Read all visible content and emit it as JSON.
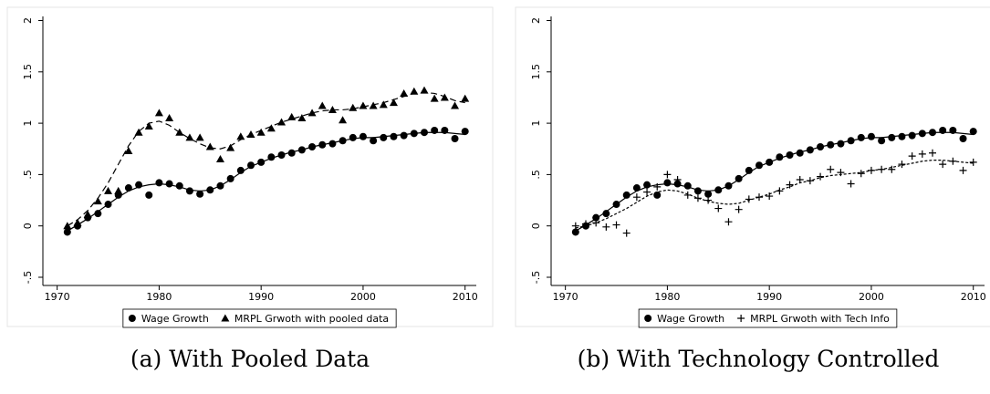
{
  "chart_data": [
    {
      "type": "scatter",
      "caption": "(a) With Pooled Data",
      "x": [
        1971,
        1972,
        1973,
        1974,
        1975,
        1976,
        1977,
        1978,
        1979,
        1980,
        1981,
        1982,
        1983,
        1984,
        1985,
        1986,
        1987,
        1988,
        1989,
        1990,
        1991,
        1992,
        1993,
        1994,
        1995,
        1996,
        1997,
        1998,
        1999,
        2000,
        2001,
        2002,
        2003,
        2004,
        2005,
        2006,
        2007,
        2008,
        2009,
        2010
      ],
      "series": [
        {
          "name": "Wage Growth",
          "color": "#000000",
          "marker": "circle",
          "dash": "none",
          "values": [
            -0.06,
            0.0,
            0.08,
            0.12,
            0.21,
            0.3,
            0.37,
            0.4,
            0.3,
            0.42,
            0.41,
            0.39,
            0.34,
            0.31,
            0.35,
            0.39,
            0.46,
            0.54,
            0.59,
            0.62,
            0.67,
            0.69,
            0.71,
            0.74,
            0.77,
            0.79,
            0.8,
            0.83,
            0.86,
            0.87,
            0.83,
            0.86,
            0.87,
            0.88,
            0.9,
            0.91,
            0.93,
            0.93,
            0.85,
            0.92
          ],
          "fit": [
            -0.05,
            0.01,
            0.07,
            0.14,
            0.21,
            0.28,
            0.34,
            0.38,
            0.4,
            0.41,
            0.4,
            0.38,
            0.35,
            0.34,
            0.35,
            0.39,
            0.45,
            0.52,
            0.58,
            0.62,
            0.66,
            0.69,
            0.72,
            0.74,
            0.77,
            0.79,
            0.81,
            0.83,
            0.85,
            0.86,
            0.86,
            0.87,
            0.88,
            0.89,
            0.9,
            0.91,
            0.91,
            0.91,
            0.9,
            0.89
          ]
        },
        {
          "name": "MRPL Grwoth with pooled data",
          "color": "#000000",
          "marker": "triangle",
          "dash": "7 4",
          "values": [
            0.0,
            0.03,
            0.11,
            0.24,
            0.34,
            0.34,
            0.73,
            0.91,
            0.97,
            1.1,
            1.05,
            0.91,
            0.86,
            0.86,
            0.77,
            0.65,
            0.76,
            0.87,
            0.89,
            0.91,
            0.95,
            1.01,
            1.06,
            1.05,
            1.1,
            1.17,
            1.13,
            1.03,
            1.15,
            1.17,
            1.17,
            1.18,
            1.2,
            1.29,
            1.31,
            1.32,
            1.24,
            1.25,
            1.17,
            1.24
          ],
          "fit": [
            0.0,
            0.06,
            0.15,
            0.27,
            0.42,
            0.6,
            0.78,
            0.92,
            1.0,
            1.02,
            0.98,
            0.91,
            0.85,
            0.8,
            0.76,
            0.75,
            0.78,
            0.84,
            0.89,
            0.93,
            0.97,
            1.01,
            1.04,
            1.07,
            1.1,
            1.12,
            1.13,
            1.13,
            1.14,
            1.16,
            1.18,
            1.2,
            1.23,
            1.26,
            1.29,
            1.3,
            1.29,
            1.26,
            1.22,
            1.2
          ]
        }
      ],
      "xlim": [
        1968.6,
        2011.1
      ],
      "xticks": [
        1970,
        1980,
        1990,
        2000,
        2010
      ],
      "ylim": [
        -0.58,
        2.04
      ],
      "yticks": [
        {
          "value": -0.5,
          "label": "-.5"
        },
        0,
        {
          "value": 0.5,
          "label": ".5"
        },
        1,
        1.5,
        2
      ],
      "legend": "bottom"
    },
    {
      "type": "scatter",
      "caption": "(b) With Technology Controlled",
      "x": [
        1971,
        1972,
        1973,
        1974,
        1975,
        1976,
        1977,
        1978,
        1979,
        1980,
        1981,
        1982,
        1983,
        1984,
        1985,
        1986,
        1987,
        1988,
        1989,
        1990,
        1991,
        1992,
        1993,
        1994,
        1995,
        1996,
        1997,
        1998,
        1999,
        2000,
        2001,
        2002,
        2003,
        2004,
        2005,
        2006,
        2007,
        2008,
        2009,
        2010
      ],
      "series": [
        {
          "name": "Wage Growth",
          "color": "#000000",
          "marker": "circle",
          "dash": "none",
          "values": [
            -0.06,
            0.0,
            0.08,
            0.12,
            0.21,
            0.3,
            0.37,
            0.4,
            0.3,
            0.42,
            0.41,
            0.39,
            0.34,
            0.31,
            0.35,
            0.39,
            0.46,
            0.54,
            0.59,
            0.62,
            0.67,
            0.69,
            0.71,
            0.74,
            0.77,
            0.79,
            0.8,
            0.83,
            0.86,
            0.87,
            0.83,
            0.86,
            0.87,
            0.88,
            0.9,
            0.91,
            0.93,
            0.93,
            0.85,
            0.92
          ],
          "fit": [
            -0.05,
            0.01,
            0.07,
            0.14,
            0.21,
            0.28,
            0.34,
            0.38,
            0.4,
            0.41,
            0.4,
            0.38,
            0.35,
            0.34,
            0.35,
            0.39,
            0.45,
            0.52,
            0.58,
            0.62,
            0.66,
            0.69,
            0.72,
            0.74,
            0.77,
            0.79,
            0.81,
            0.83,
            0.85,
            0.86,
            0.86,
            0.87,
            0.88,
            0.89,
            0.9,
            0.91,
            0.91,
            0.91,
            0.9,
            0.89
          ]
        },
        {
          "name": "MRPL Grwoth with Tech Info",
          "color": "#000000",
          "marker": "plus",
          "dash": "3 2",
          "values": [
            0.0,
            0.02,
            0.03,
            -0.01,
            0.01,
            -0.07,
            0.28,
            0.33,
            0.38,
            0.5,
            0.45,
            0.3,
            0.27,
            0.25,
            0.17,
            0.04,
            0.16,
            0.26,
            0.28,
            0.29,
            0.34,
            0.4,
            0.45,
            0.44,
            0.48,
            0.55,
            0.52,
            0.41,
            0.51,
            0.54,
            0.55,
            0.55,
            0.6,
            0.68,
            0.7,
            0.71,
            0.6,
            0.63,
            0.54,
            0.62
          ],
          "fit": [
            -0.02,
            0.0,
            0.03,
            0.07,
            0.12,
            0.17,
            0.23,
            0.29,
            0.33,
            0.35,
            0.34,
            0.31,
            0.27,
            0.24,
            0.22,
            0.21,
            0.22,
            0.25,
            0.28,
            0.31,
            0.35,
            0.38,
            0.42,
            0.44,
            0.47,
            0.49,
            0.5,
            0.51,
            0.52,
            0.54,
            0.55,
            0.57,
            0.59,
            0.61,
            0.63,
            0.64,
            0.64,
            0.63,
            0.62,
            0.61
          ]
        }
      ],
      "xlim": [
        1968.6,
        2011.1
      ],
      "xticks": [
        1970,
        1980,
        1990,
        2000,
        2010
      ],
      "ylim": [
        -0.58,
        2.04
      ],
      "yticks": [
        {
          "value": -0.5,
          "label": "-.5"
        },
        0,
        {
          "value": 0.5,
          "label": ".5"
        },
        1,
        1.5,
        2
      ],
      "legend": "bottom"
    }
  ]
}
